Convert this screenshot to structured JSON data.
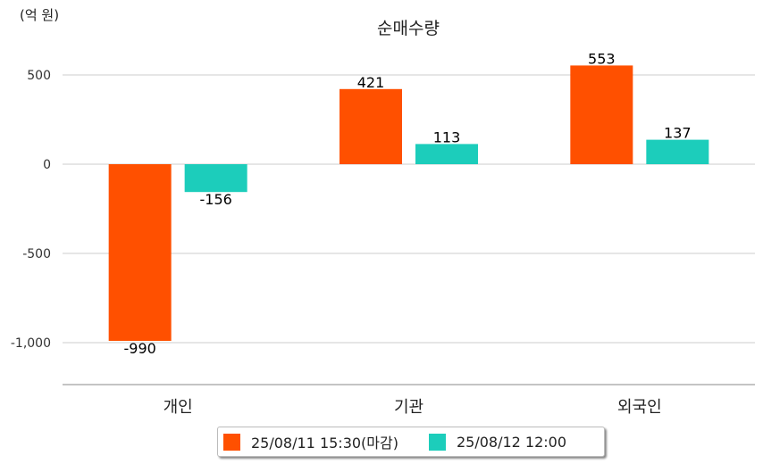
{
  "chart_data": {
    "type": "bar",
    "title": "순매수량",
    "unit_label": "(억 원)",
    "categories": [
      "개인",
      "기관",
      "외국인"
    ],
    "series": [
      {
        "name": "25/08/11 15:30(마감)",
        "color": "#ff5000",
        "values": [
          -990,
          421,
          553
        ]
      },
      {
        "name": "25/08/12 12:00",
        "color": "#1ccdbb",
        "values": [
          -156,
          113,
          137
        ]
      }
    ],
    "yticks": [
      500,
      0,
      -500,
      -1000
    ],
    "ytick_labels": [
      "500",
      "0",
      "-500",
      "-1,000"
    ],
    "ylim": [
      -1240,
      620
    ],
    "grid": true,
    "legend": "bottom"
  }
}
